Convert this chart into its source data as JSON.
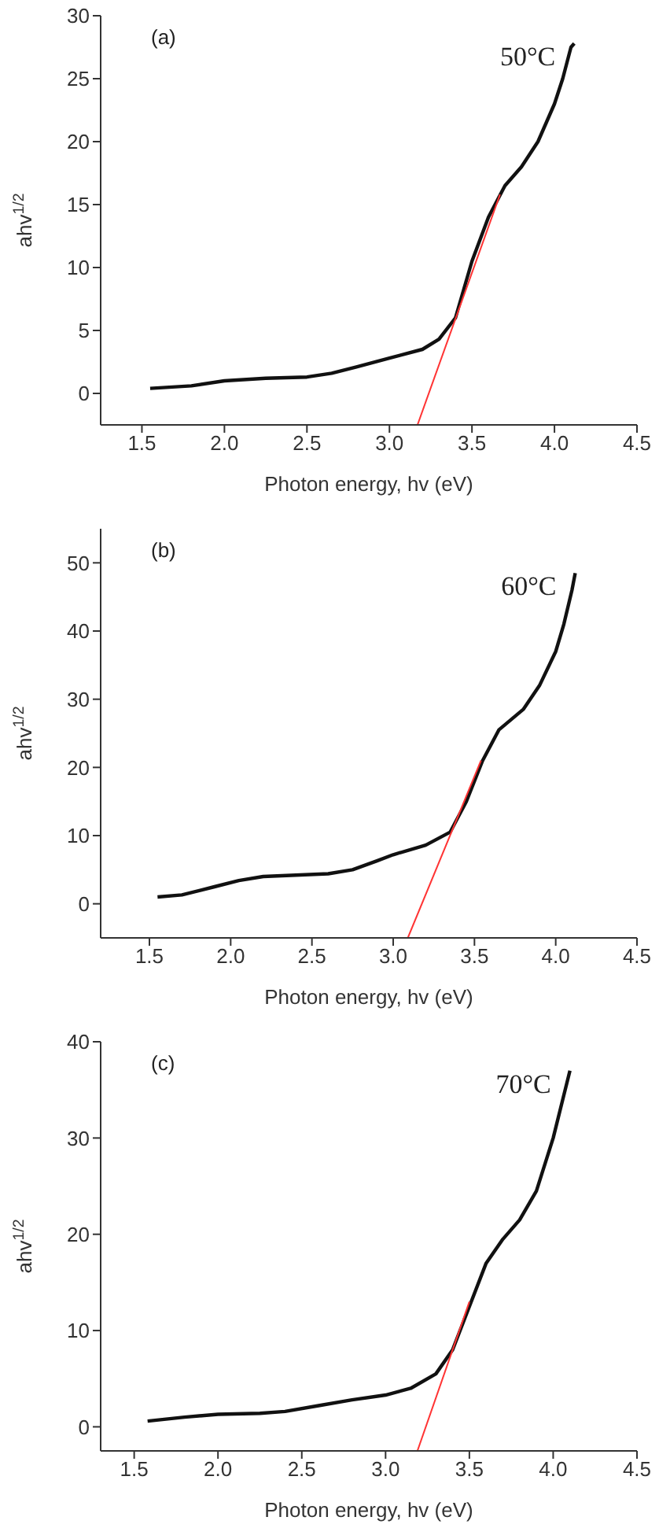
{
  "chart_data": [
    {
      "type": "line",
      "xlabel": "Photon energy, hv (eV)",
      "ylabel": "ahv$^{1/2}$",
      "annotations": [
        "(a)"
      ],
      "xlim": [
        1.25,
        4.5
      ],
      "xticks": [
        1.5,
        {
          "value": 2,
          "label": "2.0"
        },
        2.5,
        {
          "value": 3,
          "label": "3.0"
        },
        3.5,
        {
          "value": 4,
          "label": "4.0"
        },
        4.5
      ],
      "ylim": [
        -2.5,
        30
      ],
      "yticks": [
        0,
        5,
        10,
        15,
        20,
        25,
        30
      ],
      "marker": "none",
      "line_style": "solid",
      "x": [
        1.55,
        1.8,
        2.0,
        2.25,
        2.5,
        2.65,
        2.8,
        3.0,
        3.2,
        3.3,
        3.4,
        3.5,
        3.6,
        3.7,
        3.8,
        3.9,
        4.0,
        4.05,
        4.1,
        4.12
      ],
      "series": [
        {
          "name": "50°C",
          "color": "#111111",
          "values": [
            0.4,
            0.6,
            1.0,
            1.2,
            1.3,
            1.6,
            2.1,
            2.8,
            3.5,
            4.3,
            6.0,
            10.5,
            14.0,
            16.5,
            18.0,
            20.0,
            23.0,
            25.0,
            27.5,
            27.8
          ]
        },
        {
          "type": "line",
          "color": "#ff3333",
          "x": [
            3.17,
            3.67
          ],
          "values": [
            -2.5,
            15.8
          ]
        }
      ]
    },
    {
      "type": "line",
      "xlabel": "Photon energy, hv (eV)",
      "ylabel": "ahv$^{1/2}$",
      "annotations": [
        "(b)"
      ],
      "xlim": [
        1.2,
        4.5
      ],
      "xticks": [
        1.5,
        {
          "value": 2,
          "label": "2.0"
        },
        2.5,
        {
          "value": 3,
          "label": "3.0"
        },
        3.5,
        {
          "value": 4,
          "label": "4.0"
        },
        4.5
      ],
      "ylim": [
        -5,
        55
      ],
      "yticks": [
        0,
        10,
        20,
        30,
        40,
        50
      ],
      "marker": "none",
      "line_style": "solid",
      "x": [
        1.55,
        1.7,
        1.9,
        2.05,
        2.2,
        2.4,
        2.6,
        2.75,
        2.9,
        3.0,
        3.2,
        3.35,
        3.45,
        3.55,
        3.65,
        3.8,
        3.9,
        4.0,
        4.05,
        4.1,
        4.12
      ],
      "series": [
        {
          "name": "60°C",
          "color": "#111111",
          "values": [
            1.0,
            1.3,
            2.5,
            3.4,
            4.0,
            4.2,
            4.4,
            5.0,
            6.3,
            7.2,
            8.6,
            10.5,
            15,
            21,
            25.5,
            28.5,
            32,
            37,
            41,
            46,
            48.5
          ]
        },
        {
          "type": "line",
          "color": "#ff3333",
          "x": [
            3.09,
            3.54
          ],
          "values": [
            -5,
            21
          ]
        }
      ]
    },
    {
      "type": "line",
      "xlabel": "Photon energy, hv (eV)",
      "ylabel": "ahv$^{1/2}$",
      "annotations": [
        "(c)"
      ],
      "xlim": [
        1.3,
        4.5
      ],
      "xticks": [
        1.5,
        {
          "value": 2,
          "label": "2.0"
        },
        2.5,
        {
          "value": 3,
          "label": "3.0"
        },
        3.5,
        {
          "value": 4,
          "label": "4.0"
        },
        4.5
      ],
      "ylim": [
        -2.5,
        40
      ],
      "yticks": [
        0,
        10,
        20,
        30,
        40
      ],
      "marker": "none",
      "line_style": "solid",
      "x": [
        1.58,
        1.8,
        2.0,
        2.25,
        2.4,
        2.6,
        2.8,
        3.0,
        3.15,
        3.3,
        3.4,
        3.5,
        3.6,
        3.7,
        3.8,
        3.9,
        4.0,
        4.05,
        4.1
      ],
      "series": [
        {
          "name": "70°C",
          "color": "#111111",
          "values": [
            0.6,
            1.0,
            1.3,
            1.4,
            1.6,
            2.2,
            2.8,
            3.3,
            4.0,
            5.5,
            8.0,
            12.5,
            17.0,
            19.5,
            21.5,
            24.5,
            30,
            33.5,
            37
          ]
        },
        {
          "type": "line",
          "color": "#ff3333",
          "x": [
            3.19,
            3.5
          ],
          "values": [
            -2.5,
            13
          ]
        }
      ]
    }
  ]
}
